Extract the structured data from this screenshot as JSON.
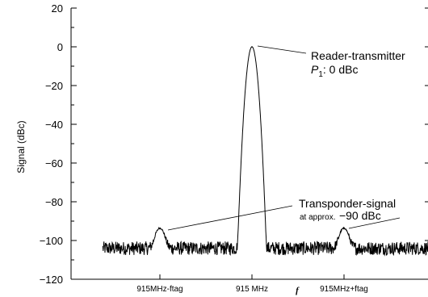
{
  "chart_data": {
    "type": "line",
    "title": "",
    "ylabel": "Signal (dBc)",
    "xlabel": "f",
    "ylim": [
      -120,
      20
    ],
    "yticks": [
      20,
      0,
      -20,
      -40,
      -60,
      -80,
      -100,
      -120
    ],
    "ytick_labels": [
      "20",
      "0",
      "−20",
      "−40",
      "−60",
      "−80",
      "−100",
      "−120"
    ],
    "xlim": [
      -1.0,
      1.0
    ],
    "xtick_positions": [
      -1,
      0,
      1
    ],
    "xtick_labels": [
      "915MHz-ftag",
      "915 MHz",
      "915MHz+ftag"
    ],
    "grid": false,
    "noise_floor_dBc": -104,
    "series": [
      {
        "peaks": [
          {
            "x": -1.0,
            "y": -94
          },
          {
            "x": 0.0,
            "y": 0
          },
          {
            "x": 1.0,
            "y": -94
          }
        ]
      }
    ],
    "annotations": {
      "reader_line1": "Reader-transmitter",
      "reader_line2_symbol": "P",
      "reader_line2_sub": "1",
      "reader_line2_rest": ": 0 dBc",
      "transponder_line1": "Transponder-signal",
      "transponder_line2_prefix": "at approx.",
      "transponder_line2_value": "−90 dBc"
    }
  }
}
